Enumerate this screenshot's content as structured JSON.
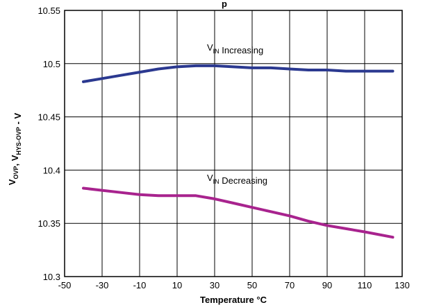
{
  "chart_data": {
    "type": "line",
    "title": "",
    "title_partial_visible": "p",
    "xlabel": "Temperature °C",
    "ylabel": {
      "parts": [
        {
          "text": "V",
          "sub": "OVP"
        },
        {
          "text": ", V",
          "sub": "HYS-OVP"
        },
        {
          "text": " - V",
          "sub": ""
        }
      ]
    },
    "xlim": [
      -50,
      130
    ],
    "ylim": [
      10.3,
      10.55
    ],
    "x_ticks": [
      -50,
      -30,
      -10,
      10,
      30,
      50,
      70,
      90,
      110,
      130
    ],
    "y_ticks": [
      10.3,
      10.35,
      10.4,
      10.45,
      10.5,
      10.55
    ],
    "grid": true,
    "series": [
      {
        "name": "VIN Increasing",
        "label_parts": [
          {
            "text": "V",
            "sub": "IN"
          },
          {
            "text": " Increasing",
            "sub": ""
          }
        ],
        "color": "#2b3990",
        "x": [
          -40,
          -30,
          -20,
          -10,
          0,
          10,
          20,
          30,
          40,
          50,
          60,
          70,
          80,
          90,
          100,
          110,
          125
        ],
        "y": [
          10.483,
          10.486,
          10.489,
          10.492,
          10.495,
          10.497,
          10.498,
          10.498,
          10.497,
          10.496,
          10.496,
          10.495,
          10.494,
          10.494,
          10.493,
          10.493,
          10.493
        ]
      },
      {
        "name": "VIN Decreasing",
        "label_parts": [
          {
            "text": "V",
            "sub": "IN"
          },
          {
            "text": " Decreasing",
            "sub": ""
          }
        ],
        "color": "#a8238e",
        "x": [
          -40,
          -30,
          -20,
          -10,
          0,
          10,
          20,
          30,
          40,
          50,
          60,
          70,
          80,
          90,
          100,
          110,
          125
        ],
        "y": [
          10.383,
          10.381,
          10.379,
          10.377,
          10.376,
          10.376,
          10.376,
          10.373,
          10.369,
          10.365,
          10.361,
          10.357,
          10.352,
          10.348,
          10.345,
          10.342,
          10.337
        ]
      }
    ]
  }
}
